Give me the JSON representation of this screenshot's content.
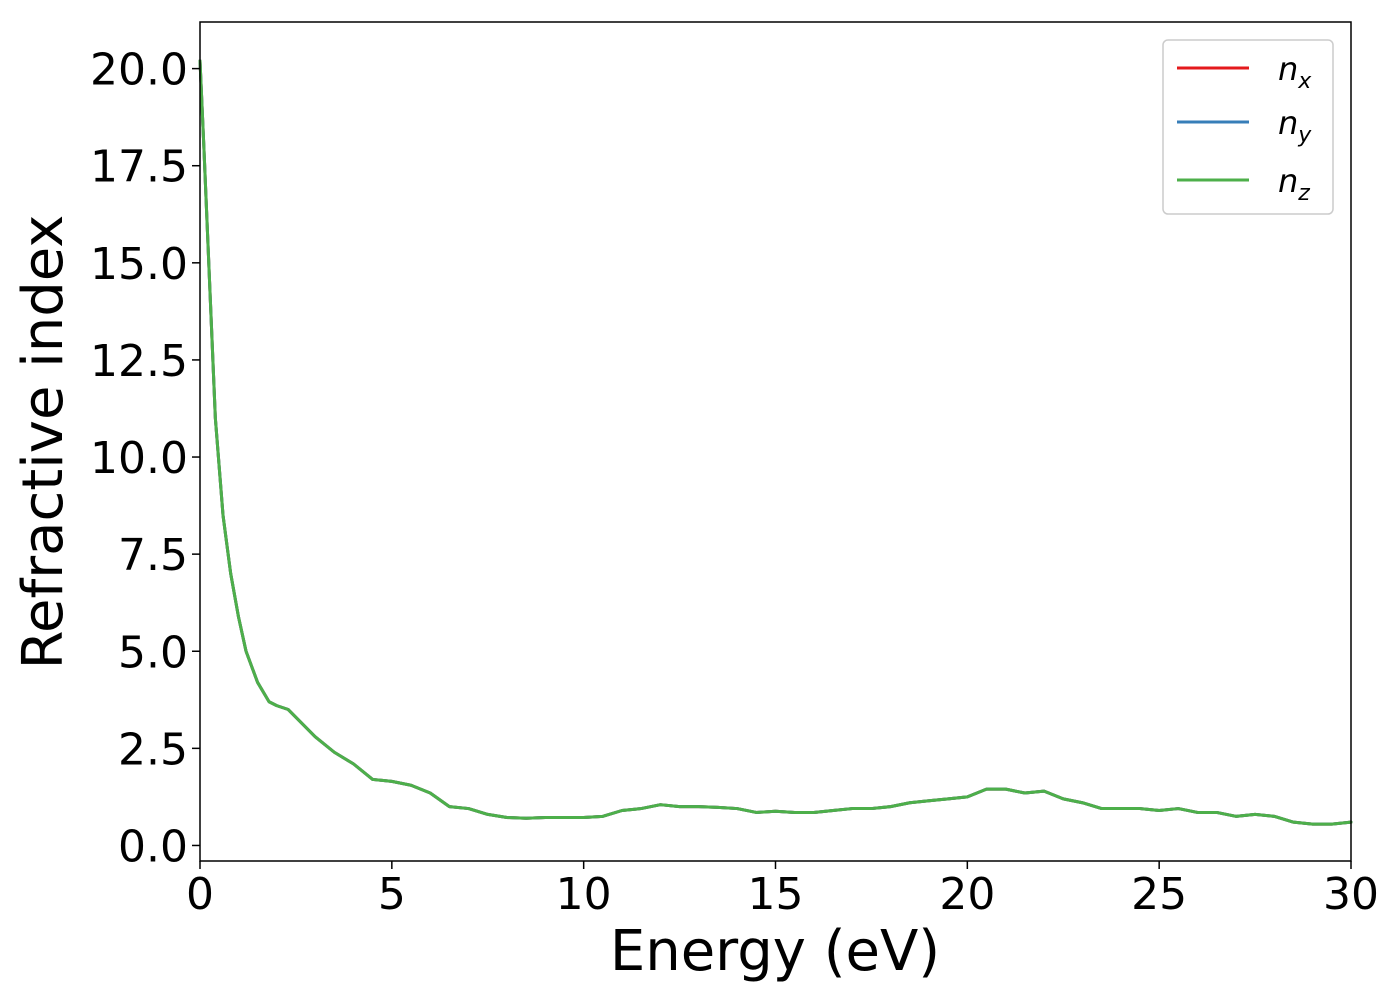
{
  "chart_data": {
    "type": "line",
    "title": "",
    "xlabel": "Energy (eV)",
    "ylabel": "Refractive index",
    "xlim": [
      0,
      30
    ],
    "ylim": [
      -0.4,
      21.2
    ],
    "xticks": [
      0,
      5,
      10,
      15,
      20,
      25,
      30
    ],
    "xtick_labels": [
      "0",
      "5",
      "10",
      "15",
      "20",
      "25",
      "30"
    ],
    "yticks": [
      0,
      2.5,
      5,
      7.5,
      10,
      12.5,
      15,
      17.5,
      20
    ],
    "ytick_labels": [
      "0.0",
      "2.5",
      "5.0",
      "7.5",
      "10.0",
      "12.5",
      "15.0",
      "17.5",
      "20.0"
    ],
    "grid": false,
    "legend_position": "upper right",
    "x": [
      0,
      0.1,
      0.25,
      0.4,
      0.6,
      0.8,
      1.0,
      1.2,
      1.5,
      1.8,
      2.0,
      2.3,
      2.6,
      3.0,
      3.5,
      4.0,
      4.5,
      5.0,
      5.5,
      6.0,
      6.5,
      7.0,
      7.5,
      8.0,
      8.5,
      9.0,
      9.5,
      10.0,
      10.5,
      11.0,
      11.5,
      12.0,
      12.5,
      13.0,
      13.5,
      14.0,
      14.5,
      15.0,
      15.5,
      16.0,
      16.5,
      17.0,
      17.5,
      18.0,
      18.5,
      19.0,
      19.5,
      20.0,
      20.5,
      21.0,
      21.5,
      22.0,
      22.5,
      23.0,
      23.5,
      24.0,
      24.5,
      25.0,
      25.5,
      26.0,
      26.5,
      27.0,
      27.5,
      28.0,
      28.5,
      29.0,
      29.5,
      30.0
    ],
    "series": [
      {
        "name": "n_x",
        "color": "#e41a1c",
        "y": [
          20.2,
          18.0,
          14.5,
          11.0,
          8.5,
          7.0,
          5.9,
          5.0,
          4.2,
          3.7,
          3.6,
          3.5,
          3.2,
          2.8,
          2.4,
          2.1,
          1.7,
          1.65,
          1.55,
          1.35,
          1.0,
          0.95,
          0.8,
          0.72,
          0.7,
          0.72,
          0.72,
          0.72,
          0.75,
          0.9,
          0.95,
          1.05,
          1.0,
          1.0,
          0.98,
          0.95,
          0.85,
          0.88,
          0.85,
          0.85,
          0.9,
          0.95,
          0.95,
          1.0,
          1.1,
          1.15,
          1.2,
          1.25,
          1.45,
          1.45,
          1.35,
          1.4,
          1.2,
          1.1,
          0.95,
          0.95,
          0.95,
          0.9,
          0.95,
          0.85,
          0.85,
          0.75,
          0.8,
          0.75,
          0.6,
          0.55,
          0.55,
          0.6
        ]
      },
      {
        "name": "n_y",
        "color": "#377eb8",
        "y": [
          20.2,
          18.0,
          14.5,
          11.0,
          8.5,
          7.0,
          5.9,
          5.0,
          4.2,
          3.7,
          3.6,
          3.5,
          3.2,
          2.8,
          2.4,
          2.1,
          1.7,
          1.65,
          1.55,
          1.35,
          1.0,
          0.95,
          0.8,
          0.72,
          0.7,
          0.72,
          0.72,
          0.72,
          0.75,
          0.9,
          0.95,
          1.05,
          1.0,
          1.0,
          0.98,
          0.95,
          0.85,
          0.88,
          0.85,
          0.85,
          0.9,
          0.95,
          0.95,
          1.0,
          1.1,
          1.15,
          1.2,
          1.25,
          1.45,
          1.45,
          1.35,
          1.4,
          1.2,
          1.1,
          0.95,
          0.95,
          0.95,
          0.9,
          0.95,
          0.85,
          0.85,
          0.75,
          0.8,
          0.75,
          0.6,
          0.55,
          0.55,
          0.6
        ]
      },
      {
        "name": "n_z",
        "color": "#4daf4a",
        "y": [
          20.2,
          18.0,
          14.5,
          11.0,
          8.5,
          7.0,
          5.9,
          5.0,
          4.2,
          3.7,
          3.6,
          3.5,
          3.2,
          2.8,
          2.4,
          2.1,
          1.7,
          1.65,
          1.55,
          1.35,
          1.0,
          0.95,
          0.8,
          0.72,
          0.7,
          0.72,
          0.72,
          0.72,
          0.75,
          0.9,
          0.95,
          1.05,
          1.0,
          1.0,
          0.98,
          0.95,
          0.85,
          0.88,
          0.85,
          0.85,
          0.9,
          0.95,
          0.95,
          1.0,
          1.1,
          1.15,
          1.2,
          1.25,
          1.45,
          1.45,
          1.35,
          1.4,
          1.2,
          1.1,
          0.95,
          0.95,
          0.95,
          0.9,
          0.95,
          0.85,
          0.85,
          0.75,
          0.8,
          0.75,
          0.6,
          0.55,
          0.55,
          0.6
        ]
      }
    ],
    "legend": [
      {
        "base": "n",
        "sub": "x",
        "color": "#e41a1c"
      },
      {
        "base": "n",
        "sub": "y",
        "color": "#377eb8"
      },
      {
        "base": "n",
        "sub": "z",
        "color": "#4daf4a"
      }
    ]
  }
}
